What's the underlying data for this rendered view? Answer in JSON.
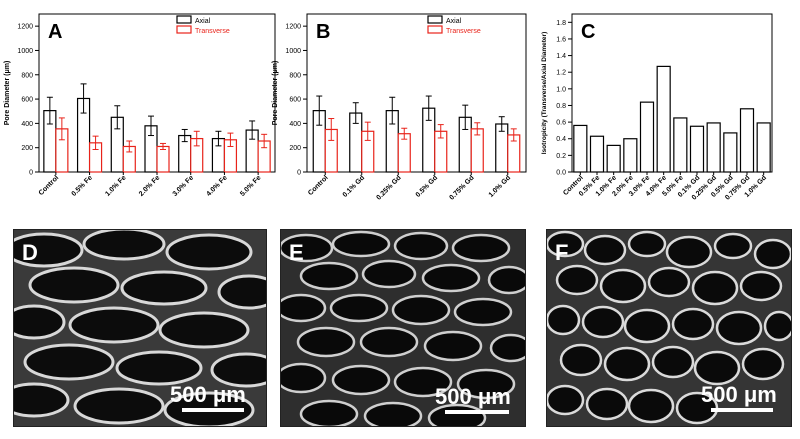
{
  "chart_data": [
    {
      "type": "bar",
      "panel": "A",
      "categories": [
        "Control",
        "0.5% Fe",
        "1.0% Fe",
        "2.0% Fe",
        "3.0% Fe",
        "4.0% Fe",
        "5.0% Fe"
      ],
      "series": [
        {
          "name": "Axial",
          "color": "#000000",
          "values": [
            505,
            605,
            450,
            380,
            300,
            275,
            345
          ],
          "errors": [
            110,
            120,
            95,
            80,
            50,
            60,
            75
          ]
        },
        {
          "name": "Transverse",
          "color": "#e8231a",
          "values": [
            355,
            240,
            210,
            210,
            275,
            265,
            255
          ],
          "errors": [
            90,
            55,
            45,
            25,
            60,
            55,
            55
          ]
        }
      ],
      "xlabel": "",
      "ylabel": "Pore Diameter (μm)",
      "ylim": [
        0,
        1300
      ],
      "yticks": [
        0,
        200,
        400,
        600,
        800,
        1000,
        1200
      ]
    },
    {
      "type": "bar",
      "panel": "B",
      "categories": [
        "Control",
        "0.1% Gd",
        "0.25% Gd",
        "0.5% Gd",
        "0.75% Gd",
        "1.0% Gd"
      ],
      "series": [
        {
          "name": "Axial",
          "color": "#000000",
          "values": [
            505,
            485,
            505,
            525,
            450,
            395
          ],
          "errors": [
            120,
            85,
            110,
            100,
            100,
            60
          ]
        },
        {
          "name": "Transverse",
          "color": "#e8231a",
          "values": [
            350,
            335,
            315,
            335,
            355,
            305
          ],
          "errors": [
            90,
            75,
            45,
            55,
            50,
            50
          ]
        }
      ],
      "xlabel": "",
      "ylabel": "Pore Diameter (μm)",
      "ylim": [
        0,
        1300
      ],
      "yticks": [
        0,
        200,
        400,
        600,
        800,
        1000,
        1200
      ]
    },
    {
      "type": "bar",
      "panel": "C",
      "categories": [
        "Control",
        "0.5% Fe",
        "1.0% Fe",
        "2.0% Fe",
        "3.0% Fe",
        "4.0% Fe",
        "5.0% Fe",
        "0.1% Gd",
        "0.25% Gd",
        "0.5% Gd",
        "0.75% Gd",
        "1.0% Gd"
      ],
      "series": [
        {
          "name": "",
          "color": "#000000",
          "values": [
            0.56,
            0.43,
            0.32,
            0.4,
            0.84,
            1.27,
            0.65,
            0.55,
            0.59,
            0.47,
            0.76,
            0.59
          ]
        }
      ],
      "xlabel": "",
      "ylabel": "Isotropicity (Transverse/Axial Diameter)",
      "ylim": [
        0,
        1.9
      ],
      "yticks": [
        0.0,
        0.2,
        0.4,
        0.6,
        0.8,
        1.0,
        1.2,
        1.4,
        1.6,
        1.8
      ]
    }
  ],
  "images": [
    {
      "panel": "D",
      "scale_label": "500 μm",
      "description_kind": "sem-micrograph"
    },
    {
      "panel": "E",
      "scale_label": "500 μm",
      "description_kind": "sem-micrograph"
    },
    {
      "panel": "F",
      "scale_label": "500 μm",
      "description_kind": "sem-micrograph"
    }
  ]
}
